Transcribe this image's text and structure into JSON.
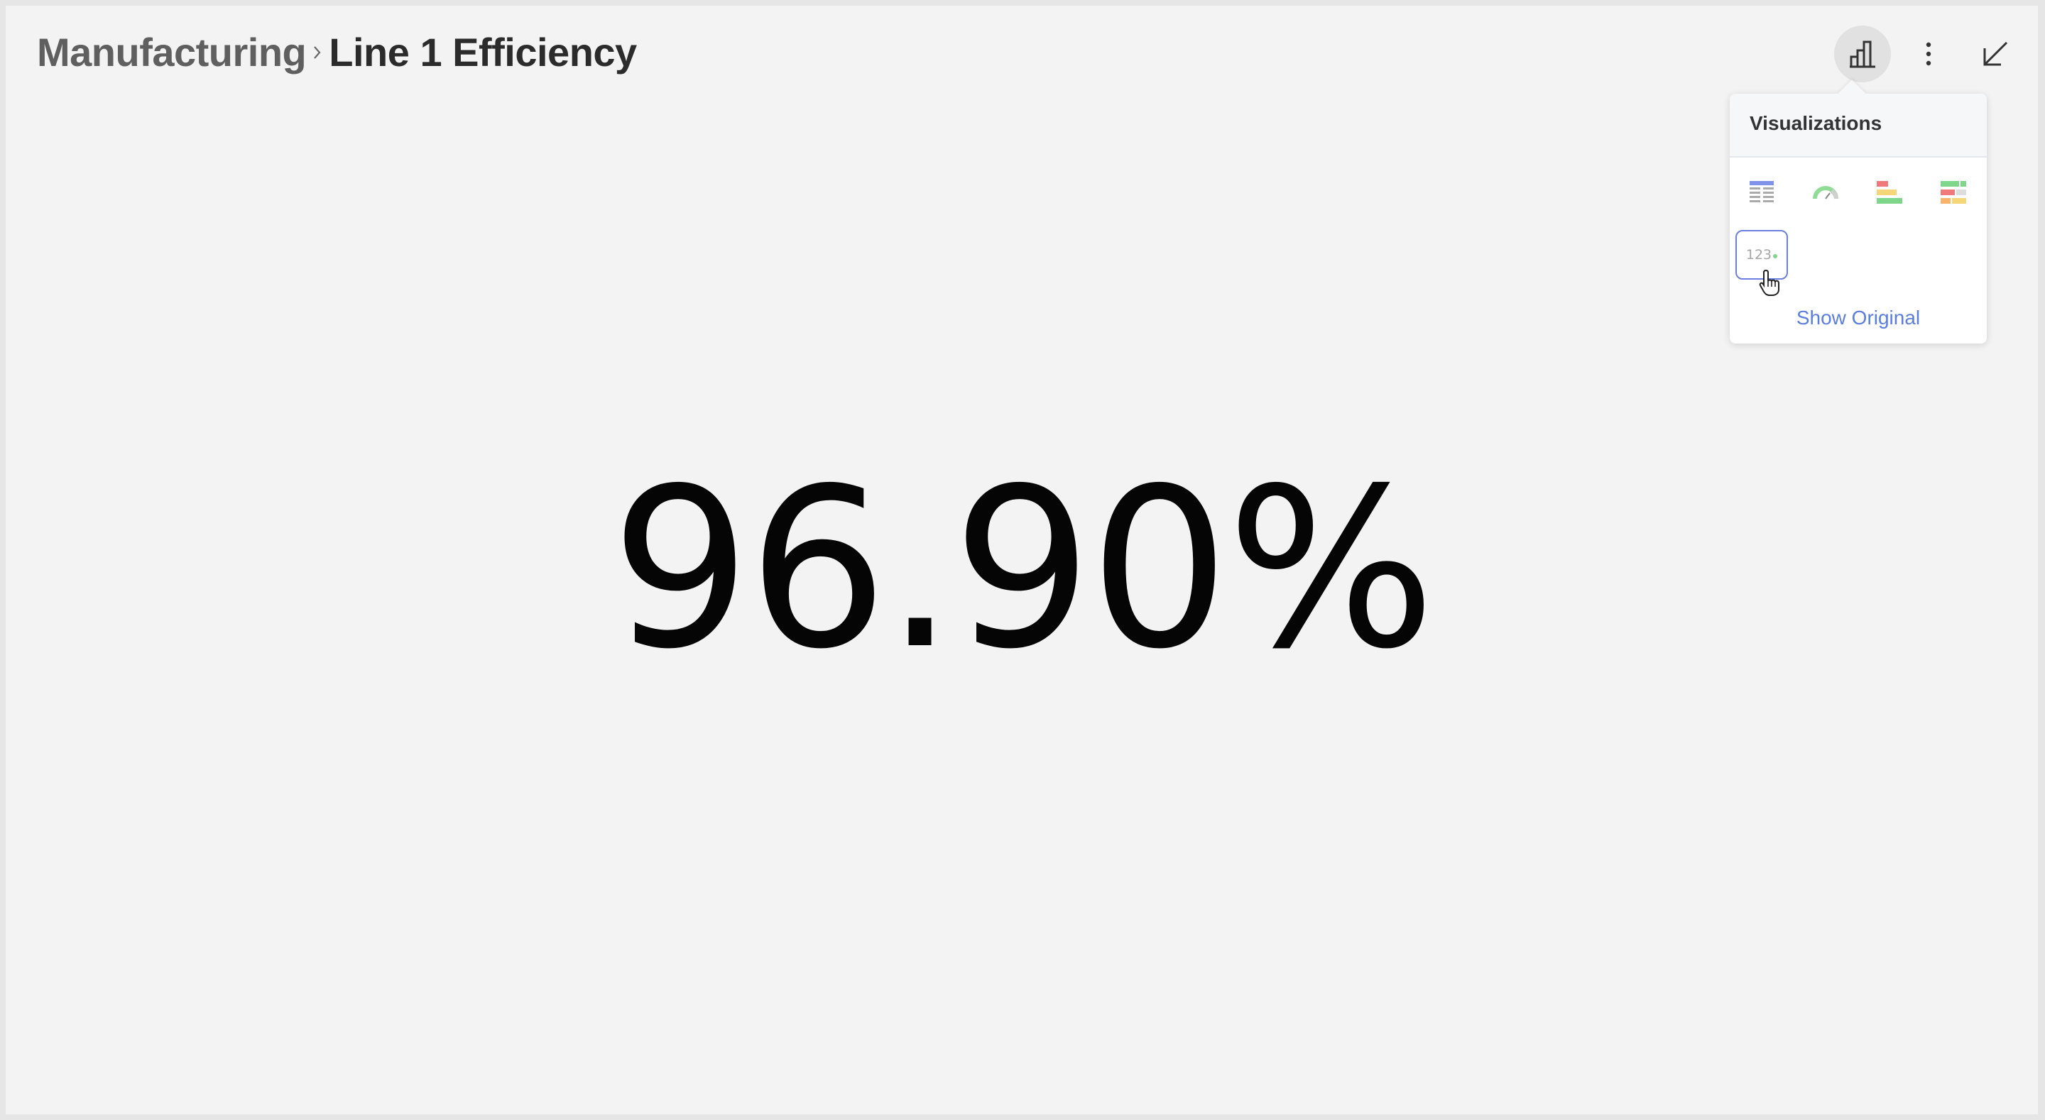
{
  "breadcrumb": {
    "parent": "Manufacturing",
    "current": "Line 1 Efficiency"
  },
  "toolbar": {
    "visualizations_icon": "bar-chart-icon",
    "more_icon": "more-vertical-icon",
    "collapse_icon": "collapse-arrow-icon"
  },
  "kpi": {
    "value": "96.90%"
  },
  "visualizations_popover": {
    "title": "Visualizations",
    "options": [
      {
        "icon": "grid-table-icon",
        "selected": false
      },
      {
        "icon": "gauge-icon",
        "selected": false
      },
      {
        "icon": "bullet-bars-icon",
        "selected": false
      },
      {
        "icon": "text-view-icon",
        "selected": false
      },
      {
        "icon": "kpi-number-icon",
        "label": "123",
        "selected": true
      }
    ],
    "show_original_label": "Show Original"
  },
  "colors": {
    "background": "#f3f3f3",
    "accent": "#5a7ee0",
    "selected_border": "#6a7fe0"
  }
}
